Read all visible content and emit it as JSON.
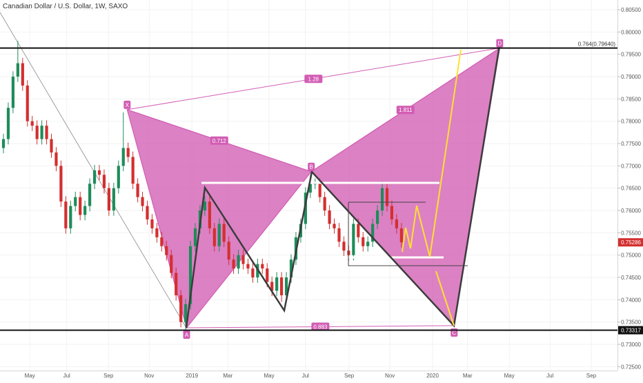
{
  "chart_data": {
    "type": "candlestick",
    "title": "Canadian Dollar / U.S. Dollar, 1W, SAXO",
    "up_color": "#1e8c5a",
    "down_color": "#d32f2f",
    "x": [
      0,
      1,
      2,
      3,
      4,
      5,
      6,
      7,
      8,
      9,
      10,
      11,
      12,
      13,
      14,
      15,
      16,
      17,
      18,
      19,
      20,
      21,
      22,
      23,
      24,
      25,
      26,
      27,
      28,
      29,
      30,
      31,
      32,
      33,
      34,
      35,
      36,
      37,
      38,
      39,
      40,
      41,
      42,
      43,
      44,
      45,
      46,
      47,
      48,
      49,
      50,
      51,
      52,
      53,
      54,
      55,
      56,
      57,
      58,
      59,
      60,
      61,
      62,
      63,
      64,
      65,
      66,
      67,
      68,
      69,
      70,
      71,
      72,
      73,
      74,
      75,
      76,
      77,
      78,
      79,
      80,
      81,
      82,
      83
    ],
    "open": [
      0.774,
      0.776,
      0.783,
      0.79,
      0.793,
      0.788,
      0.78,
      0.779,
      0.776,
      0.779,
      0.776,
      0.773,
      0.77,
      0.762,
      0.756,
      0.761,
      0.763,
      0.759,
      0.761,
      0.766,
      0.769,
      0.768,
      0.765,
      0.76,
      0.765,
      0.77,
      0.774,
      0.772,
      0.766,
      0.763,
      0.761,
      0.758,
      0.756,
      0.754,
      0.752,
      0.75,
      0.746,
      0.741,
      0.735,
      0.739,
      0.752,
      0.756,
      0.76,
      0.762,
      0.756,
      0.752,
      0.757,
      0.753,
      0.749,
      0.747,
      0.75,
      0.748,
      0.747,
      0.745,
      0.748,
      0.747,
      0.744,
      0.742,
      0.745,
      0.741,
      0.745,
      0.749,
      0.754,
      0.757,
      0.764,
      0.766,
      0.766,
      0.763,
      0.76,
      0.757,
      0.756,
      0.753,
      0.751,
      0.75,
      0.757,
      0.754,
      0.752,
      0.753,
      0.757,
      0.76,
      0.765,
      0.761,
      0.758,
      0.756
    ],
    "high": [
      0.7772,
      0.7842,
      0.7912,
      0.798,
      0.7942,
      0.7892,
      0.7812,
      0.7802,
      0.7802,
      0.7802,
      0.7772,
      0.7742,
      0.7712,
      0.7632,
      0.7622,
      0.7642,
      0.7642,
      0.7622,
      0.7672,
      0.7702,
      0.7702,
      0.7692,
      0.7662,
      0.7662,
      0.7712,
      0.782,
      0.7752,
      0.7732,
      0.7672,
      0.7642,
      0.7622,
      0.7592,
      0.7572,
      0.7552,
      0.7532,
      0.7512,
      0.7472,
      0.7422,
      0.7402,
      0.7532,
      0.7572,
      0.7612,
      0.7632,
      0.7632,
      0.7572,
      0.7582,
      0.7582,
      0.7542,
      0.7502,
      0.7512,
      0.7512,
      0.7492,
      0.7482,
      0.7492,
      0.7492,
      0.7482,
      0.7452,
      0.7462,
      0.7462,
      0.7462,
      0.7502,
      0.7552,
      0.7582,
      0.7652,
      0.768,
      0.7672,
      0.7672,
      0.7642,
      0.7612,
      0.7582,
      0.7572,
      0.7542,
      0.7522,
      0.7582,
      0.7582,
      0.7552,
      0.7542,
      0.7582,
      0.7612,
      0.7665,
      0.7662,
      0.7622,
      0.7592,
      0.7572
    ],
    "low": [
      0.7728,
      0.7748,
      0.7818,
      0.7888,
      0.7868,
      0.7788,
      0.7778,
      0.7748,
      0.7748,
      0.7748,
      0.7718,
      0.7688,
      0.7608,
      0.7548,
      0.7548,
      0.7598,
      0.7578,
      0.7578,
      0.7598,
      0.7648,
      0.7668,
      0.7638,
      0.7588,
      0.7588,
      0.7638,
      0.7688,
      0.7708,
      0.7648,
      0.7618,
      0.7598,
      0.7568,
      0.7548,
      0.7528,
      0.7508,
      0.7488,
      0.7448,
      0.7398,
      0.7338,
      0.732,
      0.7378,
      0.7508,
      0.7548,
      0.7588,
      0.7548,
      0.7508,
      0.7508,
      0.7518,
      0.7478,
      0.7458,
      0.7458,
      0.7468,
      0.7458,
      0.7438,
      0.7438,
      0.7458,
      0.7428,
      0.7408,
      0.7408,
      0.7395,
      0.7398,
      0.7438,
      0.7478,
      0.7528,
      0.7558,
      0.7628,
      0.7648,
      0.7618,
      0.7588,
      0.7558,
      0.7548,
      0.7518,
      0.7498,
      0.7488,
      0.7488,
      0.7528,
      0.7508,
      0.7508,
      0.7518,
      0.7558,
      0.7588,
      0.7598,
      0.7568,
      0.7548,
      0.7517
    ],
    "close": [
      0.776,
      0.783,
      0.79,
      0.793,
      0.788,
      0.78,
      0.779,
      0.776,
      0.779,
      0.776,
      0.773,
      0.77,
      0.762,
      0.756,
      0.761,
      0.763,
      0.759,
      0.761,
      0.766,
      0.769,
      0.768,
      0.765,
      0.76,
      0.765,
      0.77,
      0.774,
      0.772,
      0.766,
      0.763,
      0.761,
      0.758,
      0.756,
      0.754,
      0.752,
      0.75,
      0.746,
      0.741,
      0.735,
      0.739,
      0.752,
      0.756,
      0.76,
      0.762,
      0.756,
      0.752,
      0.757,
      0.753,
      0.749,
      0.747,
      0.75,
      0.748,
      0.747,
      0.745,
      0.748,
      0.747,
      0.744,
      0.742,
      0.745,
      0.741,
      0.745,
      0.749,
      0.754,
      0.757,
      0.764,
      0.766,
      0.766,
      0.763,
      0.76,
      0.757,
      0.756,
      0.753,
      0.751,
      0.75,
      0.757,
      0.754,
      0.752,
      0.753,
      0.757,
      0.76,
      0.765,
      0.761,
      0.758,
      0.756,
      0.75286
    ],
    "xlim": [
      -0.72,
      128.06
    ],
    "ylim": [
      0.72412,
      0.80717
    ],
    "xticks": [
      {
        "value": 5.5,
        "label": "May"
      },
      {
        "value": 13.2,
        "label": "Jul"
      },
      {
        "value": 21.9,
        "label": "Sep"
      },
      {
        "value": 30.4,
        "label": "Nov"
      },
      {
        "value": 39.3,
        "label": "2019"
      },
      {
        "value": 46.8,
        "label": "Mar"
      },
      {
        "value": 55.4,
        "label": "May"
      },
      {
        "value": 63.0,
        "label": "Jul"
      },
      {
        "value": 72.1,
        "label": "Sep"
      },
      {
        "value": 80.6,
        "label": "Nov"
      },
      {
        "value": 89.5,
        "label": "2020"
      },
      {
        "value": 96.8,
        "label": "Mar"
      },
      {
        "value": 105.5,
        "label": "May"
      },
      {
        "value": 114.0,
        "label": "Jul"
      },
      {
        "value": 122.6,
        "label": "Sep"
      }
    ],
    "yticks": [
      {
        "value": 0.725,
        "label": "0.72500"
      },
      {
        "value": 0.73,
        "label": "0.73000"
      },
      {
        "value": 0.735,
        "label": "0.73500"
      },
      {
        "value": 0.74,
        "label": "0.74000"
      },
      {
        "value": 0.745,
        "label": "0.74500"
      },
      {
        "value": 0.75,
        "label": "0.75000"
      },
      {
        "value": 0.755,
        "label": "0.75500"
      },
      {
        "value": 0.76,
        "label": "0.76000"
      },
      {
        "value": 0.765,
        "label": "0.76500"
      },
      {
        "value": 0.77,
        "label": "0.77000"
      },
      {
        "value": 0.775,
        "label": "0.77500"
      },
      {
        "value": 0.78,
        "label": "0.78000"
      },
      {
        "value": 0.785,
        "label": "0.78500"
      },
      {
        "value": 0.79,
        "label": "0.79000"
      },
      {
        "value": 0.795,
        "label": "0.79500"
      },
      {
        "value": 0.8,
        "label": "0.80000"
      },
      {
        "value": 0.805,
        "label": "0.80500"
      }
    ],
    "hlines": [
      {
        "value": 0.7964,
        "label": "0.764(0.79640)"
      },
      {
        "value": 0.73317,
        "label": "0.73317"
      }
    ],
    "pattern": {
      "color": "#d25db4",
      "points": [
        {
          "label": "X",
          "x": 25.8,
          "y": 0.7826
        },
        {
          "label": "A",
          "x": 38.2,
          "y": 0.7337
        },
        {
          "label": "B",
          "x": 64.2,
          "y": 0.7687
        },
        {
          "label": "C",
          "x": 94.0,
          "y": 0.7342
        },
        {
          "label": "D",
          "x": 103.5,
          "y": 0.7964
        }
      ],
      "ratios": [
        {
          "from": 0,
          "to": 2,
          "value": 0.712
        },
        {
          "from": 0,
          "to": 4,
          "value": 1.28
        },
        {
          "from": 2,
          "to": 4,
          "value": 1.811
        },
        {
          "from": 1,
          "to": 3,
          "value": 0.883
        }
      ]
    }
  }
}
